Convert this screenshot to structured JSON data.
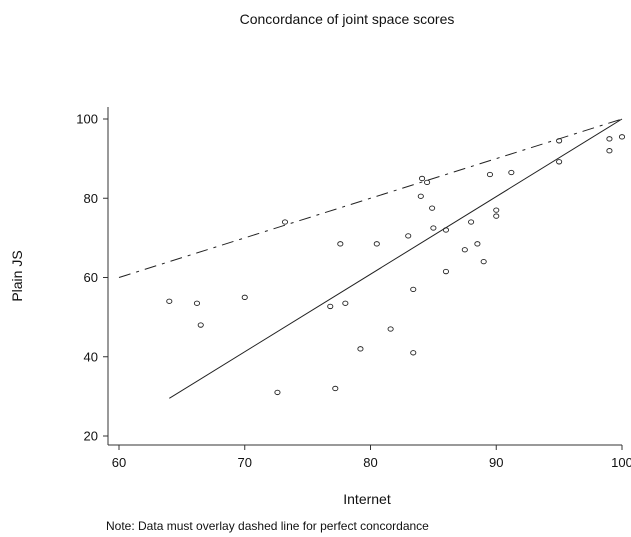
{
  "chart_data": {
    "type": "scatter",
    "title": "Concordance of joint space scores",
    "xlabel": "Internet",
    "ylabel": "Plain JS",
    "note": "Note: Data must overlay dashed line for perfect concordance",
    "xlim": [
      60,
      100
    ],
    "ylim": [
      20,
      100
    ],
    "x_ticks": [
      60,
      70,
      80,
      90,
      100
    ],
    "y_ticks": [
      20,
      40,
      60,
      80,
      100
    ],
    "grid": false,
    "legend": "none",
    "points": [
      {
        "x": 64,
        "y": 54
      },
      {
        "x": 66.2,
        "y": 53.5
      },
      {
        "x": 66.5,
        "y": 48
      },
      {
        "x": 70,
        "y": 55
      },
      {
        "x": 72.6,
        "y": 31
      },
      {
        "x": 73.2,
        "y": 74
      },
      {
        "x": 76.8,
        "y": 52.7
      },
      {
        "x": 77.2,
        "y": 32
      },
      {
        "x": 77.6,
        "y": 68.5
      },
      {
        "x": 78,
        "y": 53.5
      },
      {
        "x": 79.2,
        "y": 42
      },
      {
        "x": 80.5,
        "y": 68.5
      },
      {
        "x": 81.6,
        "y": 47
      },
      {
        "x": 83,
        "y": 70.5
      },
      {
        "x": 83.4,
        "y": 41
      },
      {
        "x": 83.4,
        "y": 57
      },
      {
        "x": 84,
        "y": 80.5
      },
      {
        "x": 84.1,
        "y": 85
      },
      {
        "x": 84.5,
        "y": 84
      },
      {
        "x": 84.9,
        "y": 77.5
      },
      {
        "x": 85,
        "y": 72.5
      },
      {
        "x": 86,
        "y": 61.5
      },
      {
        "x": 86,
        "y": 72
      },
      {
        "x": 87.5,
        "y": 67
      },
      {
        "x": 88,
        "y": 74
      },
      {
        "x": 88.5,
        "y": 68.5
      },
      {
        "x": 89,
        "y": 64
      },
      {
        "x": 89.5,
        "y": 86
      },
      {
        "x": 90,
        "y": 77
      },
      {
        "x": 90,
        "y": 75.5
      },
      {
        "x": 91.2,
        "y": 86.5
      },
      {
        "x": 95,
        "y": 94.5
      },
      {
        "x": 95,
        "y": 89.2
      },
      {
        "x": 99,
        "y": 95
      },
      {
        "x": 99,
        "y": 92
      },
      {
        "x": 100,
        "y": 95.5
      }
    ],
    "lines": [
      {
        "style": "dashed",
        "from": [
          60,
          60
        ],
        "to": [
          100,
          100
        ]
      },
      {
        "style": "solid",
        "from": [
          64,
          29.5
        ],
        "to": [
          100,
          100
        ]
      }
    ]
  }
}
